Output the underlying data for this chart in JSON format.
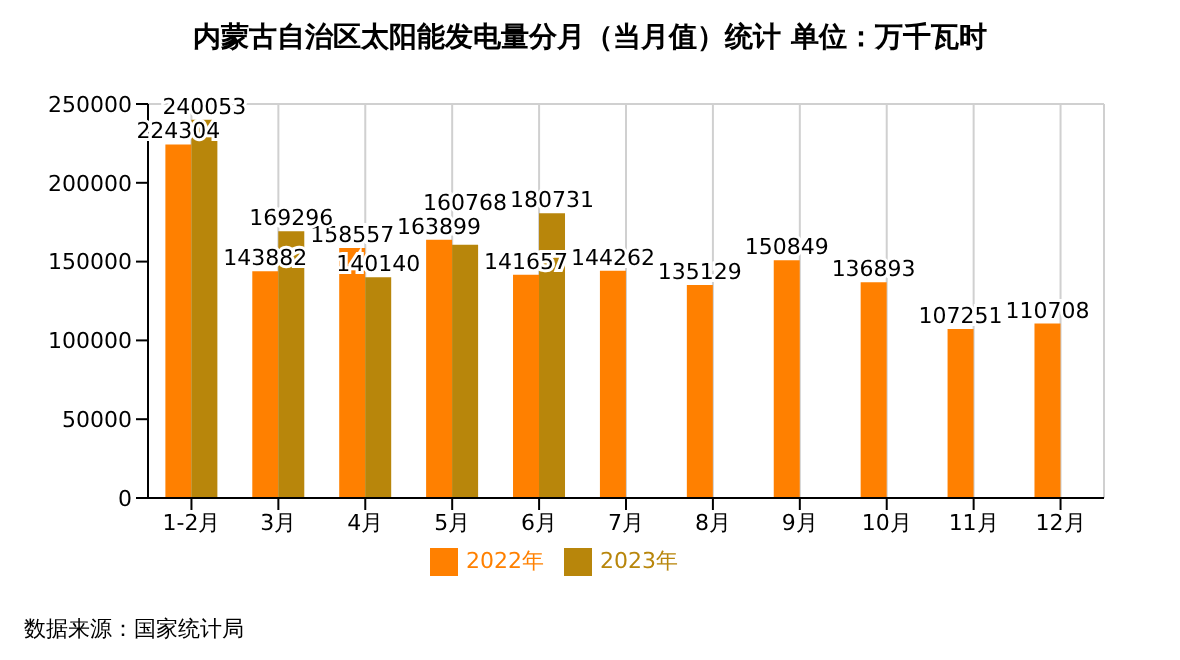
{
  "chart_data": {
    "type": "bar",
    "title": "内蒙古自治区太阳能发电量分月（当月值）统计  单位：万千瓦时",
    "categories": [
      "1-2月",
      "3月",
      "4月",
      "5月",
      "6月",
      "7月",
      "8月",
      "9月",
      "10月",
      "11月",
      "12月"
    ],
    "series": [
      {
        "name": "2022年",
        "color": "#ff8000",
        "values": [
          224304,
          143882,
          158557,
          163899,
          141657,
          144262,
          135129,
          150849,
          136893,
          107251,
          110708
        ]
      },
      {
        "name": "2023年",
        "color": "#b8860b",
        "values": [
          240053,
          169296,
          140140,
          160768,
          180731,
          null,
          null,
          null,
          null,
          null,
          null
        ]
      }
    ],
    "ylim": [
      0,
      250000
    ],
    "yticks": [
      0,
      50000,
      100000,
      150000,
      200000,
      250000
    ],
    "grid": true,
    "legend": "bottom",
    "data_labels": true,
    "annotations": [
      "数据来源：国家统计局"
    ]
  }
}
